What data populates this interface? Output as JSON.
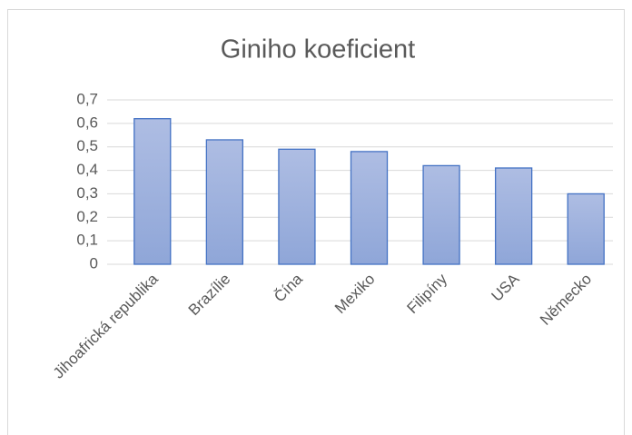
{
  "chart_data": {
    "type": "bar",
    "title": "Giniho koeficient",
    "categories": [
      "Jihoafrická republika",
      "Brazílie",
      "Čína",
      "Mexiko",
      "Filipíny",
      "USA",
      "Německo"
    ],
    "values": [
      0.62,
      0.53,
      0.49,
      0.48,
      0.42,
      0.41,
      0.3
    ],
    "color": "#4472c4",
    "ylim": [
      0,
      0.7
    ],
    "yticks": [
      0,
      {
        "value": 0.1,
        "label": "0,1"
      },
      {
        "value": 0.2,
        "label": "0,2"
      },
      {
        "value": 0.3,
        "label": "0,3"
      },
      {
        "value": 0.4,
        "label": "0,4"
      },
      {
        "value": 0.5,
        "label": "0,5"
      },
      {
        "value": 0.6,
        "label": "0,6"
      },
      {
        "value": 0.7,
        "label": "0,7"
      }
    ],
    "grid": true
  }
}
